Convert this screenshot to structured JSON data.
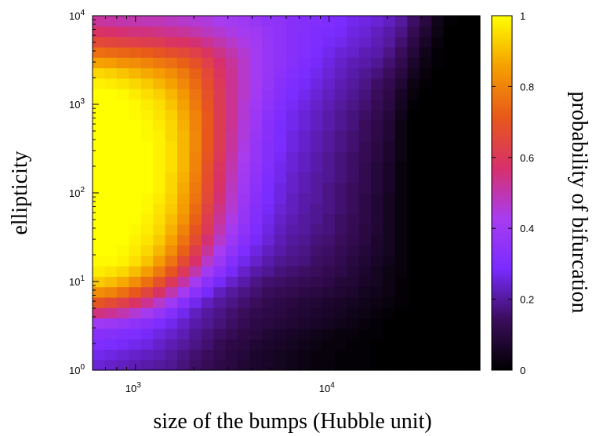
{
  "chart_data": {
    "type": "heatmap",
    "title": "",
    "xlabel": "size of the bumps (Hubble unit)",
    "ylabel": "ellipticity",
    "colorbar_label": "probability of bifurcation",
    "x_scale": "log",
    "y_scale": "log",
    "xlim": [
      600,
      60000
    ],
    "ylim": [
      1,
      10000
    ],
    "x_ticks": [
      {
        "value": 1000,
        "base": "10",
        "exp": "3"
      },
      {
        "value": 10000,
        "base": "10",
        "exp": "4"
      }
    ],
    "y_ticks": [
      {
        "value": 1,
        "base": "10",
        "exp": "0"
      },
      {
        "value": 10,
        "base": "10",
        "exp": "1"
      },
      {
        "value": 100,
        "base": "10",
        "exp": "2"
      },
      {
        "value": 1000,
        "base": "10",
        "exp": "3"
      },
      {
        "value": 10000,
        "base": "10",
        "exp": "4"
      }
    ],
    "colorbar_range": [
      0,
      1
    ],
    "colorbar_ticks": [
      "0",
      "0.2",
      "0.4",
      "0.6",
      "0.8",
      "1"
    ],
    "colormap": [
      "#000000",
      "#3a0d5c",
      "#7a2bff",
      "#a83cf0",
      "#d8306a",
      "#e8581a",
      "#f5a000",
      "#ffff00"
    ],
    "grid_resolution": {
      "cols": 32,
      "rows": 34
    },
    "x_cells_log10_range": [
      2.78,
      4.78
    ],
    "y_cells_log10_range": [
      0,
      4
    ],
    "description_of_values": "probability per cell (rows bottom to top, cols left to right)",
    "values": [
      [
        0.25,
        0.24,
        0.23,
        0.22,
        0.21,
        0.2,
        0.19,
        0.17,
        0.15,
        0.13,
        0.11,
        0.1,
        0.08,
        0.07,
        0.06,
        0.05,
        0.04,
        0.03,
        0.02,
        0.02,
        0.01,
        0.01,
        0.01,
        0.0,
        0.0,
        0.0,
        0.0,
        0.0,
        0.0,
        0.0,
        0.0,
        0.0
      ],
      [
        0.27,
        0.26,
        0.25,
        0.24,
        0.23,
        0.22,
        0.2,
        0.18,
        0.16,
        0.14,
        0.12,
        0.1,
        0.09,
        0.07,
        0.06,
        0.05,
        0.04,
        0.03,
        0.02,
        0.02,
        0.01,
        0.01,
        0.01,
        0.0,
        0.0,
        0.0,
        0.0,
        0.0,
        0.0,
        0.0,
        0.0,
        0.0
      ],
      [
        0.3,
        0.29,
        0.28,
        0.27,
        0.26,
        0.24,
        0.22,
        0.2,
        0.18,
        0.16,
        0.13,
        0.11,
        0.1,
        0.08,
        0.07,
        0.06,
        0.05,
        0.04,
        0.03,
        0.02,
        0.02,
        0.01,
        0.01,
        0.0,
        0.0,
        0.0,
        0.0,
        0.0,
        0.0,
        0.0,
        0.0,
        0.0
      ],
      [
        0.33,
        0.32,
        0.31,
        0.3,
        0.28,
        0.26,
        0.24,
        0.22,
        0.19,
        0.17,
        0.15,
        0.13,
        0.11,
        0.1,
        0.08,
        0.07,
        0.06,
        0.05,
        0.04,
        0.03,
        0.02,
        0.02,
        0.01,
        0.01,
        0.0,
        0.0,
        0.0,
        0.0,
        0.0,
        0.0,
        0.0,
        0.0
      ],
      [
        0.4,
        0.39,
        0.37,
        0.35,
        0.33,
        0.3,
        0.27,
        0.24,
        0.21,
        0.19,
        0.17,
        0.15,
        0.13,
        0.11,
        0.1,
        0.09,
        0.08,
        0.07,
        0.06,
        0.05,
        0.04,
        0.03,
        0.02,
        0.01,
        0.0,
        0.0,
        0.0,
        0.0,
        0.0,
        0.0,
        0.0,
        0.0
      ],
      [
        0.55,
        0.53,
        0.5,
        0.46,
        0.42,
        0.37,
        0.32,
        0.27,
        0.23,
        0.2,
        0.18,
        0.16,
        0.14,
        0.12,
        0.11,
        0.1,
        0.09,
        0.08,
        0.07,
        0.06,
        0.05,
        0.04,
        0.03,
        0.02,
        0.01,
        0.0,
        0.0,
        0.0,
        0.0,
        0.0,
        0.0,
        0.0
      ],
      [
        0.7,
        0.67,
        0.63,
        0.58,
        0.53,
        0.47,
        0.4,
        0.33,
        0.27,
        0.23,
        0.2,
        0.18,
        0.16,
        0.14,
        0.12,
        0.11,
        0.1,
        0.09,
        0.08,
        0.07,
        0.06,
        0.05,
        0.04,
        0.03,
        0.02,
        0.01,
        0.0,
        0.0,
        0.0,
        0.0,
        0.0,
        0.0
      ],
      [
        0.82,
        0.8,
        0.76,
        0.71,
        0.65,
        0.58,
        0.5,
        0.42,
        0.34,
        0.28,
        0.23,
        0.2,
        0.18,
        0.16,
        0.14,
        0.13,
        0.12,
        0.11,
        0.1,
        0.09,
        0.08,
        0.07,
        0.05,
        0.04,
        0.03,
        0.01,
        0.0,
        0.0,
        0.0,
        0.0,
        0.0,
        0.0
      ],
      [
        0.92,
        0.9,
        0.87,
        0.82,
        0.76,
        0.69,
        0.6,
        0.51,
        0.42,
        0.34,
        0.28,
        0.24,
        0.21,
        0.18,
        0.16,
        0.15,
        0.14,
        0.13,
        0.12,
        0.11,
        0.09,
        0.08,
        0.06,
        0.05,
        0.03,
        0.01,
        0.0,
        0.0,
        0.0,
        0.0,
        0.0,
        0.0
      ],
      [
        0.97,
        0.96,
        0.94,
        0.9,
        0.85,
        0.78,
        0.7,
        0.6,
        0.5,
        0.41,
        0.34,
        0.28,
        0.24,
        0.21,
        0.19,
        0.17,
        0.16,
        0.15,
        0.14,
        0.12,
        0.11,
        0.09,
        0.07,
        0.05,
        0.03,
        0.02,
        0.0,
        0.0,
        0.0,
        0.0,
        0.0,
        0.0
      ],
      [
        0.99,
        0.99,
        0.98,
        0.95,
        0.91,
        0.85,
        0.77,
        0.67,
        0.57,
        0.47,
        0.39,
        0.32,
        0.27,
        0.24,
        0.21,
        0.19,
        0.18,
        0.17,
        0.15,
        0.14,
        0.12,
        0.1,
        0.08,
        0.06,
        0.04,
        0.02,
        0.0,
        0.0,
        0.0,
        0.0,
        0.0,
        0.0
      ],
      [
        1.0,
        1.0,
        0.99,
        0.97,
        0.94,
        0.89,
        0.82,
        0.73,
        0.62,
        0.52,
        0.43,
        0.36,
        0.3,
        0.26,
        0.23,
        0.21,
        0.19,
        0.18,
        0.16,
        0.15,
        0.13,
        0.11,
        0.09,
        0.07,
        0.05,
        0.02,
        0.0,
        0.0,
        0.0,
        0.0,
        0.0,
        0.0
      ],
      [
        1.0,
        1.0,
        1.0,
        0.98,
        0.96,
        0.92,
        0.86,
        0.77,
        0.67,
        0.56,
        0.47,
        0.39,
        0.33,
        0.28,
        0.25,
        0.22,
        0.2,
        0.19,
        0.17,
        0.16,
        0.14,
        0.12,
        0.1,
        0.07,
        0.05,
        0.02,
        0.0,
        0.0,
        0.0,
        0.0,
        0.0,
        0.0
      ],
      [
        1.0,
        1.0,
        1.0,
        0.99,
        0.97,
        0.94,
        0.88,
        0.8,
        0.7,
        0.6,
        0.5,
        0.42,
        0.35,
        0.3,
        0.26,
        0.23,
        0.21,
        0.2,
        0.18,
        0.17,
        0.15,
        0.13,
        0.1,
        0.08,
        0.05,
        0.02,
        0.0,
        0.0,
        0.0,
        0.0,
        0.0,
        0.0
      ],
      [
        1.0,
        1.0,
        1.0,
        1.0,
        0.98,
        0.95,
        0.9,
        0.83,
        0.73,
        0.62,
        0.52,
        0.44,
        0.37,
        0.31,
        0.27,
        0.24,
        0.22,
        0.2,
        0.19,
        0.17,
        0.15,
        0.13,
        0.11,
        0.08,
        0.05,
        0.02,
        0.0,
        0.0,
        0.0,
        0.0,
        0.0,
        0.0
      ],
      [
        1.0,
        1.0,
        1.0,
        1.0,
        0.99,
        0.96,
        0.92,
        0.85,
        0.75,
        0.64,
        0.54,
        0.46,
        0.38,
        0.32,
        0.28,
        0.25,
        0.23,
        0.21,
        0.19,
        0.18,
        0.16,
        0.14,
        0.11,
        0.08,
        0.05,
        0.02,
        0.0,
        0.0,
        0.0,
        0.0,
        0.0,
        0.0
      ],
      [
        1.0,
        1.0,
        1.0,
        1.0,
        0.99,
        0.97,
        0.93,
        0.86,
        0.77,
        0.66,
        0.56,
        0.47,
        0.39,
        0.33,
        0.29,
        0.26,
        0.23,
        0.21,
        0.2,
        0.18,
        0.16,
        0.14,
        0.11,
        0.08,
        0.05,
        0.02,
        0.0,
        0.0,
        0.0,
        0.0,
        0.0,
        0.0
      ],
      [
        1.0,
        1.0,
        1.0,
        1.0,
        1.0,
        0.98,
        0.94,
        0.87,
        0.78,
        0.67,
        0.57,
        0.48,
        0.4,
        0.34,
        0.29,
        0.26,
        0.24,
        0.22,
        0.2,
        0.18,
        0.16,
        0.14,
        0.12,
        0.09,
        0.06,
        0.02,
        0.0,
        0.0,
        0.0,
        0.0,
        0.0,
        0.0
      ],
      [
        1.0,
        1.0,
        1.0,
        1.0,
        1.0,
        0.98,
        0.94,
        0.88,
        0.79,
        0.68,
        0.58,
        0.49,
        0.41,
        0.35,
        0.3,
        0.27,
        0.24,
        0.22,
        0.2,
        0.19,
        0.17,
        0.15,
        0.12,
        0.09,
        0.06,
        0.02,
        0.0,
        0.0,
        0.0,
        0.0,
        0.0,
        0.0
      ],
      [
        1.0,
        1.0,
        1.0,
        1.0,
        1.0,
        0.98,
        0.95,
        0.89,
        0.8,
        0.69,
        0.59,
        0.5,
        0.42,
        0.36,
        0.31,
        0.27,
        0.25,
        0.23,
        0.21,
        0.19,
        0.17,
        0.15,
        0.12,
        0.09,
        0.06,
        0.02,
        0.0,
        0.0,
        0.0,
        0.0,
        0.0,
        0.0
      ],
      [
        1.0,
        1.0,
        1.0,
        1.0,
        1.0,
        0.98,
        0.95,
        0.89,
        0.8,
        0.7,
        0.6,
        0.51,
        0.43,
        0.37,
        0.32,
        0.28,
        0.25,
        0.23,
        0.21,
        0.19,
        0.17,
        0.15,
        0.13,
        0.1,
        0.07,
        0.03,
        0.0,
        0.0,
        0.0,
        0.0,
        0.0,
        0.0
      ],
      [
        1.0,
        1.0,
        1.0,
        1.0,
        1.0,
        0.98,
        0.95,
        0.89,
        0.81,
        0.71,
        0.61,
        0.52,
        0.44,
        0.37,
        0.32,
        0.29,
        0.26,
        0.24,
        0.22,
        0.2,
        0.18,
        0.16,
        0.13,
        0.1,
        0.07,
        0.03,
        0.0,
        0.0,
        0.0,
        0.0,
        0.0,
        0.0
      ],
      [
        1.0,
        1.0,
        1.0,
        1.0,
        0.99,
        0.98,
        0.94,
        0.89,
        0.81,
        0.71,
        0.61,
        0.52,
        0.45,
        0.38,
        0.33,
        0.29,
        0.26,
        0.24,
        0.22,
        0.2,
        0.18,
        0.16,
        0.14,
        0.11,
        0.08,
        0.03,
        0.0,
        0.0,
        0.0,
        0.0,
        0.0,
        0.0
      ],
      [
        1.0,
        1.0,
        1.0,
        1.0,
        0.99,
        0.97,
        0.94,
        0.88,
        0.8,
        0.71,
        0.61,
        0.53,
        0.45,
        0.39,
        0.33,
        0.29,
        0.27,
        0.25,
        0.23,
        0.21,
        0.19,
        0.17,
        0.14,
        0.11,
        0.08,
        0.03,
        0.0,
        0.0,
        0.0,
        0.0,
        0.0,
        0.0
      ],
      [
        1.0,
        1.0,
        1.0,
        0.99,
        0.98,
        0.96,
        0.93,
        0.87,
        0.8,
        0.71,
        0.61,
        0.53,
        0.46,
        0.39,
        0.34,
        0.3,
        0.27,
        0.25,
        0.23,
        0.21,
        0.19,
        0.17,
        0.15,
        0.12,
        0.09,
        0.04,
        0.0,
        0.0,
        0.0,
        0.0,
        0.0,
        0.0
      ],
      [
        1.0,
        1.0,
        1.0,
        0.99,
        0.97,
        0.95,
        0.91,
        0.86,
        0.78,
        0.7,
        0.61,
        0.53,
        0.46,
        0.4,
        0.35,
        0.31,
        0.28,
        0.26,
        0.24,
        0.22,
        0.2,
        0.18,
        0.16,
        0.13,
        0.1,
        0.05,
        0.01,
        0.0,
        0.0,
        0.0,
        0.0,
        0.0
      ],
      [
        1.0,
        1.0,
        0.99,
        0.97,
        0.95,
        0.93,
        0.89,
        0.84,
        0.77,
        0.69,
        0.61,
        0.53,
        0.47,
        0.41,
        0.36,
        0.32,
        0.29,
        0.27,
        0.25,
        0.23,
        0.21,
        0.19,
        0.17,
        0.14,
        0.11,
        0.06,
        0.02,
        0.0,
        0.0,
        0.0,
        0.0,
        0.0
      ],
      [
        0.98,
        0.97,
        0.96,
        0.94,
        0.92,
        0.89,
        0.86,
        0.81,
        0.75,
        0.68,
        0.6,
        0.53,
        0.47,
        0.42,
        0.37,
        0.33,
        0.3,
        0.28,
        0.26,
        0.24,
        0.22,
        0.2,
        0.18,
        0.15,
        0.12,
        0.08,
        0.03,
        0.01,
        0.0,
        0.0,
        0.0,
        0.0
      ],
      [
        0.94,
        0.93,
        0.91,
        0.89,
        0.87,
        0.85,
        0.82,
        0.78,
        0.73,
        0.66,
        0.59,
        0.53,
        0.47,
        0.42,
        0.38,
        0.34,
        0.31,
        0.29,
        0.27,
        0.25,
        0.23,
        0.21,
        0.19,
        0.17,
        0.14,
        0.1,
        0.05,
        0.02,
        0.0,
        0.0,
        0.0,
        0.0
      ],
      [
        0.86,
        0.85,
        0.83,
        0.82,
        0.8,
        0.78,
        0.76,
        0.73,
        0.69,
        0.63,
        0.57,
        0.52,
        0.47,
        0.42,
        0.38,
        0.35,
        0.32,
        0.3,
        0.28,
        0.26,
        0.24,
        0.22,
        0.21,
        0.19,
        0.16,
        0.12,
        0.07,
        0.03,
        0.01,
        0.0,
        0.0,
        0.0
      ],
      [
        0.76,
        0.75,
        0.74,
        0.73,
        0.72,
        0.7,
        0.68,
        0.66,
        0.63,
        0.59,
        0.54,
        0.5,
        0.46,
        0.42,
        0.38,
        0.35,
        0.33,
        0.31,
        0.29,
        0.27,
        0.25,
        0.24,
        0.22,
        0.21,
        0.18,
        0.14,
        0.09,
        0.04,
        0.01,
        0.0,
        0.0,
        0.0
      ],
      [
        0.66,
        0.65,
        0.64,
        0.63,
        0.62,
        0.61,
        0.59,
        0.58,
        0.56,
        0.53,
        0.5,
        0.47,
        0.44,
        0.41,
        0.38,
        0.35,
        0.33,
        0.31,
        0.3,
        0.28,
        0.27,
        0.25,
        0.24,
        0.22,
        0.2,
        0.16,
        0.11,
        0.06,
        0.02,
        0.0,
        0.0,
        0.0
      ],
      [
        0.58,
        0.57,
        0.56,
        0.55,
        0.55,
        0.54,
        0.53,
        0.52,
        0.5,
        0.48,
        0.46,
        0.44,
        0.42,
        0.4,
        0.37,
        0.35,
        0.33,
        0.32,
        0.3,
        0.29,
        0.28,
        0.26,
        0.25,
        0.23,
        0.21,
        0.18,
        0.13,
        0.08,
        0.03,
        0.0,
        0.0,
        0.0
      ],
      [
        0.52,
        0.51,
        0.5,
        0.5,
        0.49,
        0.49,
        0.48,
        0.47,
        0.46,
        0.45,
        0.43,
        0.42,
        0.4,
        0.38,
        0.36,
        0.35,
        0.33,
        0.32,
        0.31,
        0.3,
        0.29,
        0.27,
        0.26,
        0.25,
        0.23,
        0.2,
        0.15,
        0.1,
        0.04,
        0.01,
        0.0,
        0.0
      ]
    ]
  }
}
